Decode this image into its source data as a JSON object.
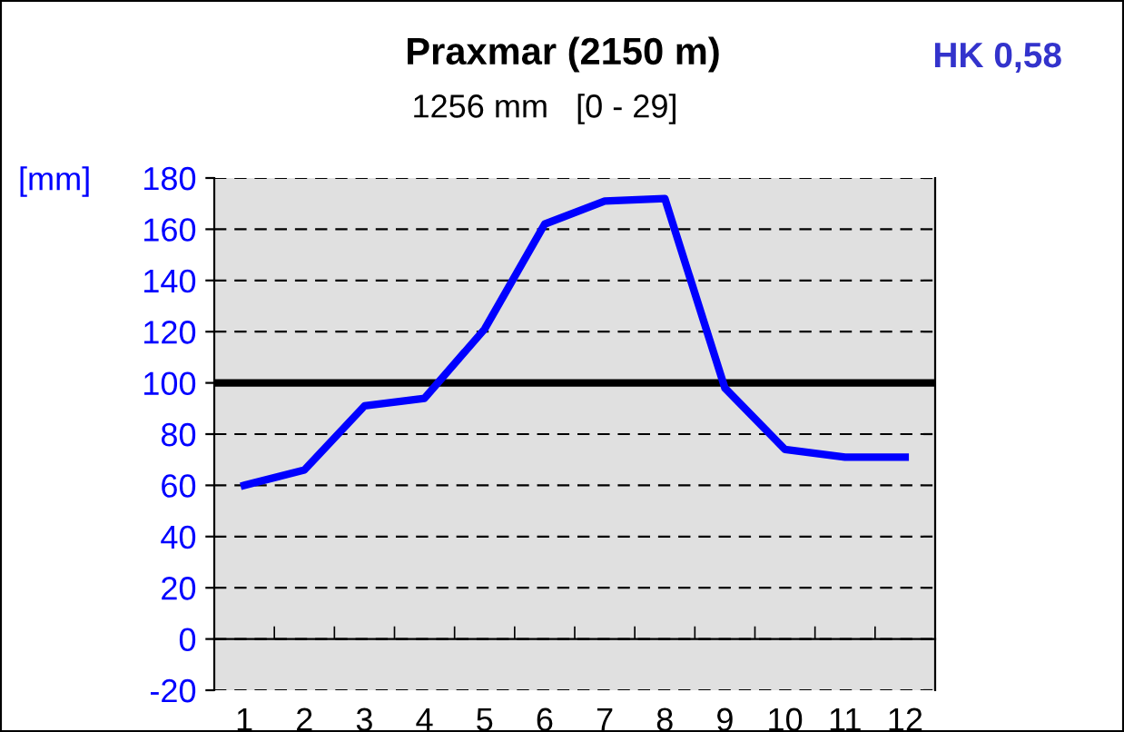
{
  "chart_data": {
    "type": "line",
    "title": "Praxmar (2150 m)",
    "subtitle": "1256 mm   [0 - 29]",
    "ylabel": "[mm]",
    "annotations": [
      "HK 0,58"
    ],
    "categories": [
      "1",
      "2",
      "3",
      "4",
      "5",
      "6",
      "7",
      "8",
      "9",
      "10",
      "11",
      "12"
    ],
    "series": [
      {
        "color": "#0000ff",
        "values": [
          60,
          66,
          91,
          94,
          121,
          162,
          171,
          172,
          98,
          74,
          71,
          71
        ]
      }
    ],
    "ylim": [
      -20,
      180
    ],
    "yticks": [
      -20,
      0,
      20,
      40,
      60,
      80,
      100,
      120,
      140,
      160,
      180
    ],
    "ref_lines": [
      {
        "axis": "y",
        "value": 100,
        "color": "#000000",
        "line_style": "solid"
      }
    ],
    "grid": "y",
    "legend": false,
    "marker": "none",
    "line_style": "solid"
  }
}
